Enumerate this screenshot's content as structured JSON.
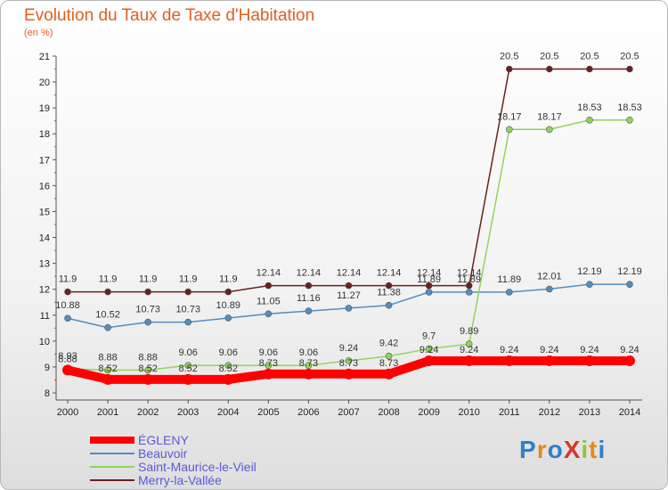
{
  "chart_data": {
    "type": "line",
    "title": "Evolution du Taux de Taxe d'Habitation",
    "subtitle": "(en %)",
    "x": [
      "2000",
      "2001",
      "2002",
      "2003",
      "2004",
      "2005",
      "2006",
      "2007",
      "2008",
      "2009",
      "2010",
      "2011",
      "2012",
      "2013",
      "2014"
    ],
    "ylim": [
      8,
      21
    ],
    "yticks": [
      "8",
      "9",
      "10",
      "11",
      "12",
      "13",
      "14",
      "15",
      "16",
      "17",
      "18",
      "19",
      "20",
      "21"
    ],
    "grid": false,
    "legend_position": "bottom-left",
    "series": [
      {
        "name": "ÉGLENY",
        "color": "#ff0000",
        "values": [
          8.88,
          8.52,
          8.52,
          8.52,
          8.52,
          8.73,
          8.73,
          8.73,
          8.73,
          9.24,
          9.24,
          9.24,
          9.24,
          9.24,
          9.24
        ],
        "labels": [
          "8.88",
          "8.52",
          "8.52",
          "8.52",
          "8.52",
          "8.73",
          "8.73",
          "8.73",
          "8.73",
          "9.24",
          "9.24",
          "9.24",
          "9.24",
          "9.24",
          "9.24"
        ]
      },
      {
        "name": "Beauvoir",
        "color": "#4f8fc4",
        "values": [
          10.88,
          10.52,
          10.73,
          10.73,
          10.89,
          11.05,
          11.16,
          11.27,
          11.38,
          11.89,
          11.89,
          11.89,
          12.01,
          12.19,
          12.19
        ],
        "labels": [
          "10.88",
          "10.52",
          "10.73",
          "10.73",
          "10.89",
          "11.05",
          "11.16",
          "11.27",
          "11.38",
          "11.89",
          "11.89",
          "11.89",
          "12.01",
          "12.19",
          "12.19"
        ]
      },
      {
        "name": "Saint-Maurice-le-Vieil",
        "color": "#8fd65a",
        "values": [
          8.93,
          8.88,
          8.88,
          9.06,
          9.06,
          9.06,
          9.06,
          9.24,
          9.42,
          9.7,
          9.89,
          18.17,
          18.17,
          18.53,
          18.53
        ],
        "labels": [
          "8.93",
          "8.88",
          "8.88",
          "9.06",
          "9.06",
          "9.06",
          "9.06",
          "9.24",
          "9.42",
          "9.7",
          "9.89",
          "18.17",
          "18.17",
          "18.53",
          "18.53"
        ]
      },
      {
        "name": "Merry-la-Vallée",
        "color": "#6b2020",
        "values": [
          11.9,
          11.9,
          11.9,
          11.9,
          11.9,
          12.14,
          12.14,
          12.14,
          12.14,
          12.14,
          12.14,
          20.5,
          20.5,
          20.5,
          20.5
        ],
        "labels": [
          "11.9",
          "11.9",
          "11.9",
          "11.9",
          "11.9",
          "12.14",
          "12.14",
          "12.14",
          "12.14",
          "12.14",
          "12.14",
          "20.5",
          "20.5",
          "20.5",
          "20.5"
        ]
      }
    ]
  },
  "logo": {
    "text": "ProXiti"
  }
}
